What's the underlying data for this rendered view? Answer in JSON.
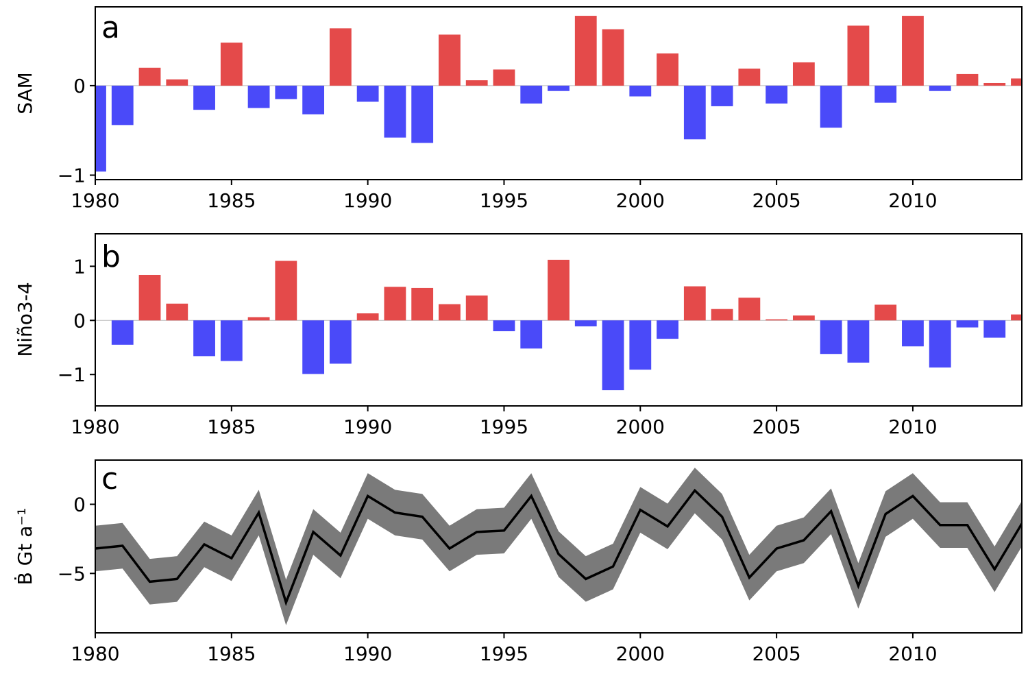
{
  "colors": {
    "positive": "#e44a4a",
    "negative": "#4a4af9",
    "band": "#7a7a7a",
    "line": "#000000"
  },
  "chart_data": [
    {
      "type": "bar",
      "panel": "a",
      "ylabel": "SAM",
      "xlim": [
        1980,
        2014
      ],
      "ylim": [
        -1.05,
        0.88
      ],
      "xticks": [
        1980,
        1985,
        1990,
        1995,
        2000,
        2005,
        2010
      ],
      "xtick_labels": [
        "1980",
        "1985",
        "1990",
        "1995",
        "2000",
        "2005",
        "2010"
      ],
      "yticks": [
        -1,
        0
      ],
      "ytick_labels": [
        "−1",
        "0"
      ],
      "x": [
        1980,
        1981,
        1982,
        1983,
        1984,
        1985,
        1986,
        1987,
        1988,
        1989,
        1990,
        1991,
        1992,
        1993,
        1994,
        1995,
        1996,
        1997,
        1998,
        1999,
        2000,
        2001,
        2002,
        2003,
        2004,
        2005,
        2006,
        2007,
        2008,
        2009,
        2010,
        2011,
        2012,
        2013,
        2014
      ],
      "values": [
        -0.96,
        -0.44,
        0.2,
        0.07,
        -0.27,
        0.48,
        -0.25,
        -0.15,
        -0.32,
        0.64,
        -0.18,
        -0.58,
        -0.64,
        0.57,
        0.06,
        0.18,
        -0.2,
        -0.06,
        0.78,
        0.63,
        -0.12,
        0.36,
        -0.6,
        -0.23,
        0.19,
        -0.2,
        0.26,
        -0.47,
        0.67,
        -0.19,
        0.78,
        -0.06,
        0.13,
        0.03,
        0.08
      ]
    },
    {
      "type": "bar",
      "panel": "b",
      "ylabel": "Niño3-4",
      "xlim": [
        1980,
        2014
      ],
      "ylim": [
        -1.58,
        1.6
      ],
      "xticks": [
        1980,
        1985,
        1990,
        1995,
        2000,
        2005,
        2010
      ],
      "xtick_labels": [
        "1980",
        "1985",
        "1990",
        "1995",
        "2000",
        "2005",
        "2010"
      ],
      "yticks": [
        -1,
        0,
        1
      ],
      "ytick_labels": [
        "−1",
        "0",
        "1"
      ],
      "x": [
        1980,
        1981,
        1982,
        1983,
        1984,
        1985,
        1986,
        1987,
        1988,
        1989,
        1990,
        1991,
        1992,
        1993,
        1994,
        1995,
        1996,
        1997,
        1998,
        1999,
        2000,
        2001,
        2002,
        2003,
        2004,
        2005,
        2006,
        2007,
        2008,
        2009,
        2010,
        2011,
        2012,
        2013,
        2014
      ],
      "values": [
        0.0,
        -0.45,
        0.84,
        0.31,
        -0.66,
        -0.75,
        0.06,
        1.1,
        -0.99,
        -0.8,
        0.13,
        0.62,
        0.6,
        0.3,
        0.46,
        -0.2,
        -0.52,
        1.12,
        -0.11,
        -1.29,
        -0.91,
        -0.34,
        0.63,
        0.21,
        0.42,
        0.02,
        0.09,
        -0.62,
        -0.78,
        0.29,
        -0.48,
        -0.87,
        -0.13,
        -0.32,
        0.11
      ]
    },
    {
      "type": "line",
      "panel": "c",
      "ylabel": "Ḃ Gt a⁻¹",
      "xlim": [
        1980,
        2014
      ],
      "ylim": [
        -9.3,
        3.2
      ],
      "band_halfwidth": 1.65,
      "xticks": [
        1980,
        1985,
        1990,
        1995,
        2000,
        2005,
        2010
      ],
      "xtick_labels": [
        "1980",
        "1985",
        "1990",
        "1995",
        "2000",
        "2005",
        "2010"
      ],
      "yticks": [
        -5,
        0
      ],
      "ytick_labels": [
        "−5",
        "0"
      ],
      "x": [
        1980,
        1981,
        1982,
        1983,
        1984,
        1985,
        1986,
        1987,
        1988,
        1989,
        1990,
        1991,
        1992,
        1993,
        1994,
        1995,
        1996,
        1997,
        1998,
        1999,
        2000,
        2001,
        2002,
        2003,
        2004,
        2005,
        2006,
        2007,
        2008,
        2009,
        2010,
        2011,
        2012,
        2013,
        2014
      ],
      "y": [
        -3.2,
        -3.0,
        -5.6,
        -5.4,
        -2.9,
        -3.9,
        -0.6,
        -7.1,
        -2.0,
        -3.7,
        0.6,
        -0.6,
        -0.9,
        -3.2,
        -2.0,
        -1.9,
        0.6,
        -3.6,
        -5.4,
        -4.5,
        -0.4,
        -1.6,
        1.0,
        -0.9,
        -5.3,
        -3.2,
        -2.6,
        -0.5,
        -5.9,
        -0.7,
        0.6,
        -1.5,
        -1.5,
        -4.7,
        -1.4
      ]
    }
  ]
}
